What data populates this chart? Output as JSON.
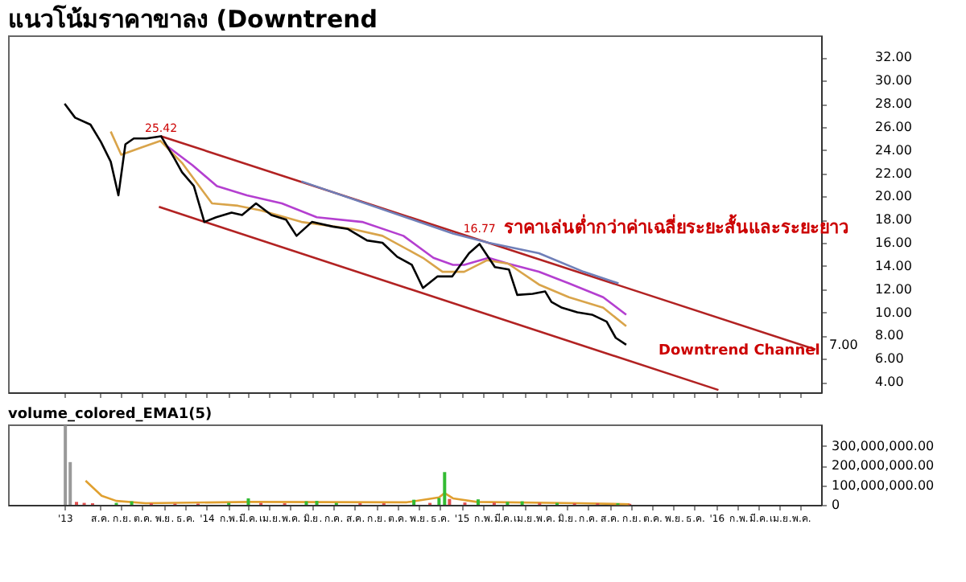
{
  "chart_data": [
    {
      "type": "line",
      "title": "แนวโน้มราคาขาลง (Downtrend",
      "xlim": [
        "2013-03-23",
        "2016-05-30"
      ],
      "xticks": [
        {
          "value": "2013-06-12",
          "label": null
        },
        {
          "value": "2013-08-01",
          "label": null
        },
        {
          "value": "2013-09-01",
          "label": null
        },
        {
          "value": "2013-10-01",
          "label": null
        },
        {
          "value": "2013-11-01",
          "label": null
        },
        {
          "value": "2013-12-01",
          "label": null
        },
        {
          "value": "2014-01-01",
          "label": null
        },
        {
          "value": "2014-02-01",
          "label": null
        },
        {
          "value": "2014-03-01",
          "label": null
        },
        {
          "value": "2014-04-01",
          "label": null
        },
        {
          "value": "2014-05-01",
          "label": null
        },
        {
          "value": "2014-06-01",
          "label": null
        },
        {
          "value": "2014-07-01",
          "label": null
        },
        {
          "value": "2014-08-01",
          "label": null
        },
        {
          "value": "2014-09-01",
          "label": null
        },
        {
          "value": "2014-10-01",
          "label": null
        },
        {
          "value": "2014-11-01",
          "label": null
        },
        {
          "value": "2014-12-01",
          "label": null
        },
        {
          "value": "2015-01-01",
          "label": null
        },
        {
          "value": "2015-02-01",
          "label": null
        },
        {
          "value": "2015-03-01",
          "label": null
        },
        {
          "value": "2015-04-01",
          "label": null
        },
        {
          "value": "2015-05-01",
          "label": null
        },
        {
          "value": "2015-06-01",
          "label": null
        },
        {
          "value": "2015-07-01",
          "label": null
        },
        {
          "value": "2015-08-01",
          "label": null
        },
        {
          "value": "2015-09-01",
          "label": null
        },
        {
          "value": "2015-10-01",
          "label": null
        },
        {
          "value": "2015-11-01",
          "label": null
        },
        {
          "value": "2015-12-01",
          "label": null
        },
        {
          "value": "2016-01-01",
          "label": null
        },
        {
          "value": "2016-02-01",
          "label": null
        },
        {
          "value": "2016-03-01",
          "label": null
        },
        {
          "value": "2016-04-01",
          "label": null
        },
        {
          "value": "2016-05-01",
          "label": null
        }
      ],
      "ylim": [
        3.1,
        33.9
      ],
      "yticks": [
        {
          "value": 4,
          "label": "4.00"
        },
        {
          "value": 6,
          "label": "6.00"
        },
        {
          "value": 8,
          "label": "8.00"
        },
        {
          "value": 10,
          "label": "10.00"
        },
        {
          "value": 12,
          "label": "12.00"
        },
        {
          "value": 14,
          "label": "14.00"
        },
        {
          "value": 16,
          "label": "16.00"
        },
        {
          "value": 18,
          "label": "18.00"
        },
        {
          "value": 20,
          "label": "20.00"
        },
        {
          "value": 22,
          "label": "22.00"
        },
        {
          "value": 24,
          "label": "24.00"
        },
        {
          "value": 26,
          "label": "26.00"
        },
        {
          "value": 28,
          "label": "28.00"
        },
        {
          "value": 30,
          "label": "30.00"
        },
        {
          "value": 32,
          "label": "32.00"
        }
      ],
      "tick_labels": "y",
      "grid": false,
      "marker": "none",
      "line_style": "solid",
      "series": [
        {
          "color": "#b22222",
          "x": [
            "2013-10-28",
            "2016-05-22"
          ],
          "values": [
            25.2,
            6.8
          ]
        },
        {
          "color": "#b22222",
          "x": [
            "2013-10-25",
            "2016-01-04"
          ],
          "values": [
            19.1,
            3.3
          ]
        },
        {
          "color": "#6f7fb8",
          "x": [
            "2014-05-17",
            "2014-12-20",
            "2015-02-09",
            "2015-04-22",
            "2015-06-25",
            "2015-08-14"
          ],
          "values": [
            21.3,
            16.8,
            16.0,
            15.1,
            13.5,
            12.5
          ]
        },
        {
          "color": "#b43fd0",
          "x": [
            "2013-10-31",
            "2013-12-12",
            "2014-01-16",
            "2014-02-28",
            "2014-04-19",
            "2014-06-08",
            "2014-08-12",
            "2014-10-10",
            "2014-11-22",
            "2014-12-20",
            "2015-01-05",
            "2015-02-09",
            "2015-03-09",
            "2015-04-22",
            "2015-06-04",
            "2015-07-23",
            "2015-08-25"
          ],
          "values": [
            24.6,
            22.7,
            20.9,
            20.1,
            19.4,
            18.2,
            17.8,
            16.6,
            14.7,
            14.1,
            14.1,
            14.7,
            14.2,
            13.5,
            12.5,
            11.3,
            9.8
          ]
        },
        {
          "color": "#d9a44a",
          "x": [
            "2013-08-17",
            "2013-09-01",
            "2013-09-29",
            "2013-10-27",
            "2013-11-27",
            "2014-01-09",
            "2014-02-15",
            "2014-03-20",
            "2014-05-17",
            "2014-07-28",
            "2014-09-10",
            "2014-11-07",
            "2014-12-05",
            "2015-01-05",
            "2015-02-07",
            "2015-03-09",
            "2015-04-22",
            "2015-06-04",
            "2015-07-23",
            "2015-08-25"
          ],
          "values": [
            25.6,
            23.6,
            24.2,
            24.8,
            22.9,
            19.4,
            19.2,
            18.8,
            17.8,
            17.2,
            16.6,
            14.7,
            13.5,
            13.5,
            14.5,
            14.2,
            12.4,
            11.3,
            10.4,
            8.8
          ]
        },
        {
          "color": "#000000",
          "x": [
            "2013-06-12",
            "2013-06-27",
            "2013-07-19",
            "2013-08-03",
            "2013-08-17",
            "2013-08-28",
            "2013-09-07",
            "2013-09-19",
            "2013-10-07",
            "2013-10-28",
            "2013-11-16",
            "2013-11-27",
            "2013-12-14",
            "2013-12-29",
            "2014-01-15",
            "2014-02-06",
            "2014-02-21",
            "2014-03-13",
            "2014-04-04",
            "2014-04-25",
            "2014-05-10",
            "2014-06-01",
            "2014-07-01",
            "2014-07-22",
            "2014-08-19",
            "2014-09-10",
            "2014-10-01",
            "2014-10-22",
            "2014-11-07",
            "2014-11-28",
            "2014-12-19",
            "2015-01-12",
            "2015-01-27",
            "2015-02-18",
            "2015-03-10",
            "2015-03-22",
            "2015-04-13",
            "2015-05-01",
            "2015-05-10",
            "2015-05-25",
            "2015-06-16",
            "2015-07-07",
            "2015-07-28",
            "2015-08-10",
            "2015-08-25"
          ],
          "values": [
            28.0,
            26.8,
            26.2,
            24.7,
            23.0,
            20.1,
            24.5,
            25.0,
            25.0,
            25.2,
            23.3,
            22.1,
            20.9,
            17.8,
            18.2,
            18.6,
            18.4,
            19.4,
            18.4,
            18.0,
            16.6,
            17.8,
            17.4,
            17.2,
            16.2,
            16.0,
            14.8,
            14.1,
            12.1,
            13.1,
            13.1,
            15.1,
            15.9,
            13.9,
            13.7,
            11.5,
            11.6,
            11.8,
            10.9,
            10.4,
            10.0,
            9.8,
            9.2,
            7.8,
            7.2
          ]
        }
      ],
      "annotations": [
        {
          "text": "25.42",
          "x": "2013-10-28",
          "y": 25.42
        },
        {
          "text": "16.77",
          "x": "2015-01-27",
          "y": 16.77
        },
        "ราคาเล่นต่ำกว่าค่าเฉลี่ยระยะสั้นและระยะยาว",
        "Downtrend Channel",
        "7.00"
      ]
    },
    {
      "type": "bar",
      "title": "volume_colored_EMA1(5)",
      "xlim": [
        "2013-03-23",
        "2016-05-30"
      ],
      "xticks": [
        {
          "value": "2013-06-12",
          "label": "'13"
        },
        {
          "value": "2013-08-01",
          "label": "ส.ค."
        },
        {
          "value": "2013-09-01",
          "label": "ก.ย."
        },
        {
          "value": "2013-10-01",
          "label": "ต.ค."
        },
        {
          "value": "2013-11-01",
          "label": "พ.ย."
        },
        {
          "value": "2013-12-01",
          "label": "ธ.ค."
        },
        {
          "value": "2014-01-01",
          "label": "'14"
        },
        {
          "value": "2014-02-01",
          "label": "ก.พ."
        },
        {
          "value": "2014-03-01",
          "label": "มี.ค."
        },
        {
          "value": "2014-04-01",
          "label": "เม.ย."
        },
        {
          "value": "2014-05-01",
          "label": "พ.ค."
        },
        {
          "value": "2014-06-01",
          "label": "มิ.ย."
        },
        {
          "value": "2014-07-01",
          "label": "ก.ค."
        },
        {
          "value": "2014-08-01",
          "label": "ส.ค."
        },
        {
          "value": "2014-09-01",
          "label": "ก.ย."
        },
        {
          "value": "2014-10-01",
          "label": "ต.ค."
        },
        {
          "value": "2014-11-01",
          "label": "พ.ย."
        },
        {
          "value": "2014-12-01",
          "label": "ธ.ค."
        },
        {
          "value": "2015-01-01",
          "label": "'15"
        },
        {
          "value": "2015-02-01",
          "label": "ก.พ."
        },
        {
          "value": "2015-03-01",
          "label": "มี.ค."
        },
        {
          "value": "2015-04-01",
          "label": "เม.ย."
        },
        {
          "value": "2015-05-01",
          "label": "พ.ค."
        },
        {
          "value": "2015-06-01",
          "label": "มิ.ย."
        },
        {
          "value": "2015-07-01",
          "label": "ก.ค."
        },
        {
          "value": "2015-08-01",
          "label": "ส.ค."
        },
        {
          "value": "2015-09-01",
          "label": "ก.ย."
        },
        {
          "value": "2015-10-01",
          "label": "ต.ค."
        },
        {
          "value": "2015-11-01",
          "label": "พ.ย."
        },
        {
          "value": "2015-12-01",
          "label": "ธ.ค."
        },
        {
          "value": "2016-01-01",
          "label": "'16"
        },
        {
          "value": "2016-02-01",
          "label": "ก.พ."
        },
        {
          "value": "2016-03-01",
          "label": "มี.ค."
        },
        {
          "value": "2016-04-01",
          "label": "เม.ย."
        },
        {
          "value": "2016-05-01",
          "label": "พ.ค."
        }
      ],
      "ylim": [
        0,
        410000000
      ],
      "yticks": [
        {
          "value": 0,
          "label": "0"
        },
        {
          "value": 100000000,
          "label": "100,000,000.00"
        },
        {
          "value": 200000000,
          "label": "200,000,000.00"
        },
        {
          "value": 300000000,
          "label": "300,000,000.00"
        }
      ],
      "grid": false,
      "series": [
        {
          "type": "bar",
          "x": [
            "2013-06-13",
            "2013-06-20",
            "2013-06-29",
            "2013-07-10",
            "2013-07-22",
            "2013-08-25",
            "2013-09-16",
            "2013-10-14",
            "2013-11-17",
            "2013-12-20",
            "2014-02-02",
            "2014-03-02",
            "2014-03-20",
            "2014-04-23",
            "2014-05-24",
            "2014-06-08",
            "2014-07-06",
            "2014-08-09",
            "2014-09-12",
            "2014-10-25",
            "2014-11-17",
            "2014-11-30",
            "2014-12-08",
            "2014-12-15",
            "2015-01-06",
            "2015-01-25",
            "2015-02-17",
            "2015-03-08",
            "2015-03-29",
            "2015-04-23",
            "2015-05-18",
            "2015-06-12",
            "2015-07-15",
            "2015-08-13",
            "2015-08-30"
          ],
          "values": [
            405000000,
            218000000,
            15000000,
            10000000,
            8000000,
            10000000,
            18000000,
            8000000,
            6000000,
            6000000,
            10000000,
            33000000,
            10000000,
            8000000,
            18000000,
            20000000,
            10000000,
            8000000,
            8000000,
            26000000,
            10000000,
            35000000,
            167000000,
            30000000,
            12000000,
            28000000,
            12000000,
            15000000,
            18000000,
            10000000,
            10000000,
            8000000,
            8000000,
            8000000,
            5000000
          ],
          "colors": [
            "#999999",
            "#999999",
            "#e05050",
            "#e05050",
            "#e05050",
            "#33bb33",
            "#33bb33",
            "#e05050",
            "#e05050",
            "#e05050",
            "#33bb33",
            "#33bb33",
            "#e05050",
            "#e05050",
            "#33bb33",
            "#33bb33",
            "#33bb33",
            "#e05050",
            "#e05050",
            "#33bb33",
            "#e05050",
            "#33bb33",
            "#33bb33",
            "#e05050",
            "#e05050",
            "#33bb33",
            "#e05050",
            "#33bb33",
            "#33bb33",
            "#e05050",
            "#33bb33",
            "#e05050",
            "#e05050",
            "#33bb33",
            "#e05050"
          ]
        },
        {
          "type": "line",
          "color": "#e0a030",
          "x": [
            "2013-07-12",
            "2013-08-04",
            "2013-08-25",
            "2013-10-06",
            "2014-03-04",
            "2014-10-15",
            "2014-11-30",
            "2014-12-08",
            "2014-12-20",
            "2015-01-23",
            "2015-06-20",
            "2015-08-30"
          ],
          "values": [
            123000000,
            46000000,
            20000000,
            8000000,
            15000000,
            13000000,
            38000000,
            60000000,
            33000000,
            15000000,
            8000000,
            3000000
          ]
        }
      ]
    }
  ]
}
